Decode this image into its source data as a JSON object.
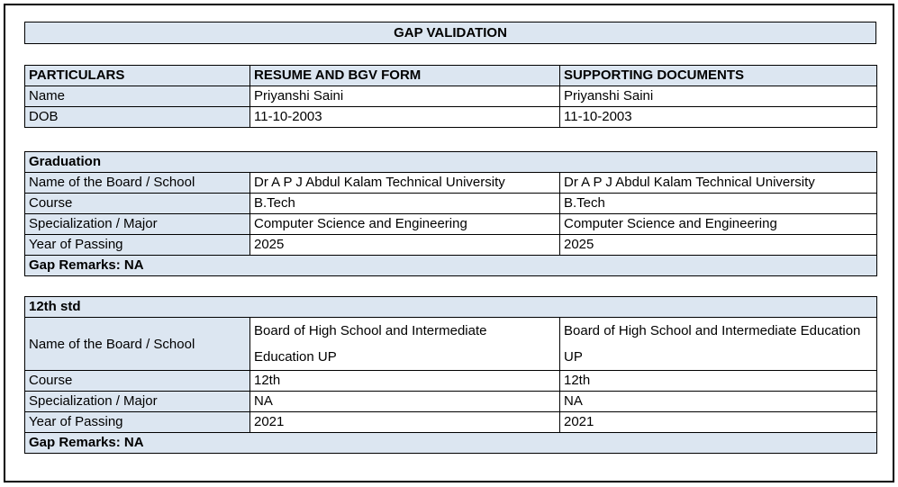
{
  "page": {
    "title": "GAP VALIDATION"
  },
  "colors": {
    "header_fill": "#dce6f1",
    "border": "#000000",
    "page_background": "#ffffff"
  },
  "particulars_table": {
    "columns": [
      "PARTICULARS",
      "RESUME AND BGV FORM",
      "SUPPORTING DOCUMENTS"
    ],
    "rows": [
      {
        "label": "Name",
        "resume": "Priyanshi Saini",
        "supporting": "Priyanshi Saini"
      },
      {
        "label": "DOB",
        "resume": "11-10-2003",
        "supporting": "11-10-2003"
      }
    ]
  },
  "sections": [
    {
      "title": "Graduation",
      "rows": [
        {
          "label": "Name of the Board / School",
          "resume": "Dr A P J Abdul Kalam Technical University",
          "supporting": "Dr A P J Abdul Kalam Technical University"
        },
        {
          "label": "Course",
          "resume": "B.Tech",
          "supporting": "B.Tech"
        },
        {
          "label": "Specialization / Major",
          "resume": "Computer Science and Engineering",
          "supporting": "Computer Science and Engineering"
        },
        {
          "label": "Year of Passing",
          "resume": "2025",
          "supporting": "2025"
        }
      ],
      "gap_remarks": "Gap Remarks: NA"
    },
    {
      "title": "12th std",
      "rows": [
        {
          "label": "Name of the Board / School",
          "resume": "Board of High School and Intermediate Education UP",
          "supporting": "Board of High School and Intermediate Education UP"
        },
        {
          "label": "Course",
          "resume": "12th",
          "supporting": "12th"
        },
        {
          "label": "Specialization / Major",
          "resume": "NA",
          "supporting": "NA"
        },
        {
          "label": "Year of Passing",
          "resume": "2021",
          "supporting": "2021"
        }
      ],
      "gap_remarks": "Gap Remarks: NA"
    }
  ]
}
